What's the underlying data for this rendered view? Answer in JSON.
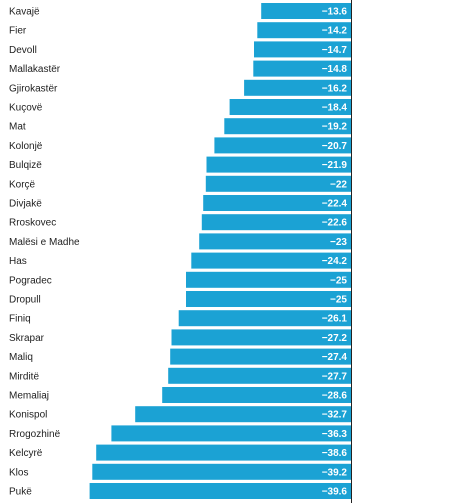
{
  "chart_data": {
    "type": "bar",
    "orientation": "horizontal",
    "categories": [
      "Kavajë",
      "Fier",
      "Devoll",
      "Mallakastër",
      "Gjirokastër",
      "Kuçovë",
      "Mat",
      "Kolonjë",
      "Bulqizë",
      "Korçë",
      "Divjakë",
      "Rroskovec",
      "Malësi e Madhe",
      "Has",
      "Pogradec",
      "Dropull",
      "Finiq",
      "Skrapar",
      "Maliq",
      "Mirditë",
      "Memaliaj",
      "Konispol",
      "Rrogozhinë",
      "Kelcyrë",
      "Klos",
      "Pukë"
    ],
    "values": [
      -13.6,
      -14.2,
      -14.7,
      -14.8,
      -16.2,
      -18.4,
      -19.2,
      -20.7,
      -21.9,
      -22,
      -22.4,
      -22.6,
      -23,
      -24.2,
      -25,
      -25,
      -26.1,
      -27.2,
      -27.4,
      -27.7,
      -28.6,
      -32.7,
      -36.3,
      -38.6,
      -39.2,
      -39.6
    ],
    "value_labels": [
      "−13.6",
      "−14.2",
      "−14.7",
      "−14.8",
      "−16.2",
      "−18.4",
      "−19.2",
      "−20.7",
      "−21.9",
      "−22",
      "−22.4",
      "−22.6",
      "−23",
      "−24.2",
      "−25",
      "−25",
      "−26.1",
      "−27.2",
      "−27.4",
      "−27.7",
      "−28.6",
      "−32.7",
      "−36.3",
      "−38.6",
      "−39.2",
      "−39.6"
    ],
    "title": "",
    "xlabel": "",
    "ylabel": "",
    "grid": false,
    "legend": "none"
  },
  "colors": {
    "bar": "#1ba2d4",
    "axis": "#222222",
    "label": "#222222",
    "value_text": "#ffffff"
  }
}
